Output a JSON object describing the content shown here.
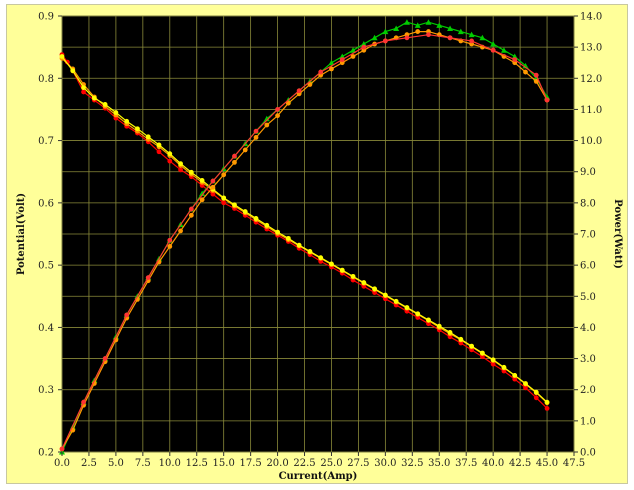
{
  "chart_data": {
    "type": "line",
    "title": "",
    "xlabel": "Current(Amp)",
    "ylabel": "Potential(Volt)",
    "y2label": "Power(Watt)",
    "xlim": [
      0,
      47.5
    ],
    "ylim": [
      0.2,
      0.9
    ],
    "y2lim": [
      0,
      14
    ],
    "grid": true,
    "legend": "none",
    "background": "#000000",
    "frame_color": "#ffff99",
    "grid_color": "#8a8a3a",
    "x_ticks": [
      "0.0",
      "2.5",
      "5.0",
      "7.5",
      "10.0",
      "12.5",
      "15.0",
      "17.5",
      "20.0",
      "22.5",
      "25.0",
      "27.5",
      "30.0",
      "32.5",
      "35.0",
      "37.5",
      "40.0",
      "42.5",
      "45.0",
      "47.5"
    ],
    "y_ticks": [
      "0.2",
      "0.3",
      "0.4",
      "0.5",
      "0.6",
      "0.7",
      "0.8",
      "0.9"
    ],
    "y2_ticks": [
      "0.0",
      "1.0",
      "2.0",
      "3.0",
      "4.0",
      "5.0",
      "6.0",
      "7.0",
      "8.0",
      "9.0",
      "10.0",
      "11.0",
      "12.0",
      "13.0",
      "14.0"
    ],
    "series": [
      {
        "axis": "left",
        "color": "#ff0000",
        "marker": "circle",
        "x": [
          0,
          0.5,
          1,
          2,
          3,
          4,
          5,
          6,
          7,
          8,
          9,
          10,
          11,
          12,
          13,
          14,
          15,
          16,
          17,
          18,
          19,
          20,
          21,
          22,
          23,
          24,
          25,
          26,
          27,
          28,
          29,
          30,
          31,
          32,
          33,
          34,
          35,
          36,
          37,
          38,
          39,
          40,
          41,
          42,
          43,
          44,
          45
        ],
        "y": [
          0.838,
          0.826,
          0.812,
          0.778,
          0.765,
          0.752,
          0.736,
          0.723,
          0.712,
          0.698,
          0.682,
          0.667,
          0.653,
          0.642,
          0.628,
          0.614,
          0.6,
          0.591,
          0.58,
          0.569,
          0.558,
          0.548,
          0.538,
          0.527,
          0.517,
          0.506,
          0.497,
          0.487,
          0.476,
          0.466,
          0.456,
          0.446,
          0.436,
          0.426,
          0.416,
          0.406,
          0.396,
          0.385,
          0.375,
          0.364,
          0.353,
          0.341,
          0.33,
          0.317,
          0.303,
          0.287,
          0.27
        ]
      },
      {
        "axis": "left",
        "color": "#ff9900",
        "marker": "circle",
        "x": [
          0,
          1,
          2,
          3,
          4,
          5,
          6,
          7,
          8,
          9,
          10,
          11,
          12,
          13,
          14,
          15,
          16,
          17,
          18,
          19,
          20,
          21,
          22,
          23,
          24,
          25,
          26,
          27,
          28,
          29,
          30,
          31,
          32,
          33,
          34,
          35,
          36,
          37,
          38,
          39,
          40,
          41,
          42,
          43,
          44,
          45
        ],
        "y": [
          0.832,
          0.815,
          0.79,
          0.77,
          0.755,
          0.741,
          0.727,
          0.715,
          0.702,
          0.69,
          0.676,
          0.66,
          0.646,
          0.633,
          0.62,
          0.607,
          0.595,
          0.584,
          0.573,
          0.562,
          0.551,
          0.541,
          0.531,
          0.521,
          0.511,
          0.501,
          0.491,
          0.481,
          0.471,
          0.461,
          0.451,
          0.441,
          0.431,
          0.421,
          0.411,
          0.4,
          0.39,
          0.38,
          0.369,
          0.358,
          0.347,
          0.335,
          0.323,
          0.309,
          0.295,
          0.279
        ]
      },
      {
        "axis": "left",
        "color": "#ffff00",
        "marker": "circle",
        "x": [
          0,
          1,
          2,
          3,
          4,
          5,
          6,
          7,
          8,
          9,
          10,
          11,
          12,
          13,
          14,
          15,
          16,
          17,
          18,
          19,
          20,
          21,
          22,
          23,
          24,
          25,
          26,
          27,
          28,
          29,
          30,
          31,
          32,
          33,
          34,
          35,
          36,
          37,
          38,
          39,
          40,
          41,
          42,
          43,
          44,
          45
        ],
        "y": [
          0.835,
          0.812,
          0.785,
          0.768,
          0.758,
          0.745,
          0.731,
          0.719,
          0.706,
          0.693,
          0.679,
          0.663,
          0.649,
          0.636,
          0.622,
          0.608,
          0.597,
          0.586,
          0.575,
          0.564,
          0.553,
          0.543,
          0.532,
          0.522,
          0.512,
          0.502,
          0.492,
          0.482,
          0.472,
          0.462,
          0.452,
          0.442,
          0.432,
          0.422,
          0.412,
          0.402,
          0.392,
          0.381,
          0.37,
          0.359,
          0.348,
          0.336,
          0.323,
          0.31,
          0.296,
          0.28
        ]
      },
      {
        "axis": "right",
        "color": "#00cc00",
        "marker": "triangle",
        "x": [
          0,
          1,
          2,
          3,
          4,
          5,
          6,
          7,
          8,
          9,
          10,
          11,
          12,
          13,
          14,
          15,
          16,
          17,
          18,
          19,
          20,
          21,
          22,
          23,
          24,
          25,
          26,
          27,
          28,
          29,
          30,
          31,
          32,
          33,
          34,
          35,
          36,
          37,
          38,
          39,
          40,
          41,
          42,
          43,
          44,
          45
        ],
        "y": [
          0.0,
          0.8,
          1.6,
          2.3,
          3.0,
          3.7,
          4.4,
          5.0,
          5.6,
          6.2,
          6.8,
          7.3,
          7.8,
          8.3,
          8.7,
          9.1,
          9.5,
          9.9,
          10.3,
          10.7,
          11.0,
          11.3,
          11.6,
          11.9,
          12.2,
          12.5,
          12.7,
          12.9,
          13.1,
          13.3,
          13.5,
          13.6,
          13.8,
          13.7,
          13.8,
          13.7,
          13.6,
          13.5,
          13.4,
          13.3,
          13.1,
          12.9,
          12.7,
          12.4,
          12.0,
          11.4
        ]
      },
      {
        "axis": "right",
        "color": "#ff9900",
        "marker": "circle",
        "x": [
          0,
          1,
          2,
          3,
          4,
          5,
          6,
          7,
          8,
          9,
          10,
          11,
          12,
          13,
          14,
          15,
          16,
          17,
          18,
          19,
          20,
          21,
          22,
          23,
          24,
          25,
          26,
          27,
          28,
          29,
          30,
          31,
          32,
          33,
          34,
          35,
          36,
          37,
          38,
          39,
          40,
          41,
          42,
          43,
          44,
          45
        ],
        "y": [
          0.1,
          0.7,
          1.5,
          2.2,
          2.9,
          3.6,
          4.3,
          4.9,
          5.5,
          6.1,
          6.6,
          7.1,
          7.6,
          8.1,
          8.5,
          8.9,
          9.3,
          9.7,
          10.1,
          10.5,
          10.8,
          11.2,
          11.5,
          11.8,
          12.1,
          12.3,
          12.5,
          12.7,
          12.9,
          13.1,
          13.2,
          13.3,
          13.4,
          13.5,
          13.5,
          13.4,
          13.3,
          13.2,
          13.1,
          13.0,
          12.9,
          12.7,
          12.5,
          12.2,
          11.9,
          11.3
        ]
      },
      {
        "axis": "right",
        "color": "#ff3333",
        "marker": "circle",
        "x": [
          0,
          2,
          4,
          6,
          8,
          10,
          12,
          14,
          16,
          18,
          20,
          22,
          24,
          26,
          28,
          30,
          32,
          34,
          36,
          38,
          40,
          42,
          44,
          45
        ],
        "y": [
          0.1,
          1.6,
          3.0,
          4.4,
          5.6,
          6.8,
          7.8,
          8.7,
          9.5,
          10.3,
          11.0,
          11.6,
          12.2,
          12.6,
          13.0,
          13.2,
          13.3,
          13.4,
          13.3,
          13.2,
          12.9,
          12.6,
          12.1,
          11.3
        ]
      }
    ]
  }
}
